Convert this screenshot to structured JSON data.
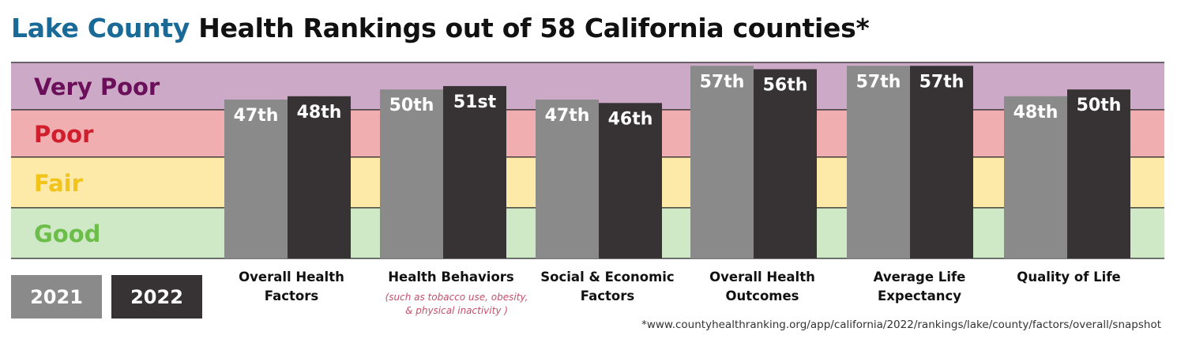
{
  "title": {
    "county": "Lake County",
    "rest": " Health Rankings out of 58 California counties*"
  },
  "chart_data": {
    "type": "bar",
    "ylim": [
      0,
      58
    ],
    "bands": [
      {
        "label": "Very Poor",
        "color": "#cca9c7",
        "text_color": "#6b0f5a",
        "from": 44,
        "to": 58
      },
      {
        "label": "Poor",
        "color": "#f0aeb1",
        "text_color": "#d01f2c",
        "from": 30,
        "to": 44
      },
      {
        "label": "Fair",
        "color": "#fde9a8",
        "text_color": "#f2c318",
        "from": 15,
        "to": 30
      },
      {
        "label": "Good",
        "color": "#cfe8c6",
        "text_color": "#6cbd4a",
        "from": 0,
        "to": 15
      }
    ],
    "categories": [
      "Overall Health Factors",
      "Health Behaviors",
      "Social & Economic Factors",
      "Overall Health Outcomes",
      "Average Life Expectancy",
      "Quality of Life"
    ],
    "series": [
      {
        "name": "2021",
        "color": "#8a8a8a",
        "values": [
          47,
          50,
          47,
          57,
          57,
          48
        ],
        "labels": [
          "47th",
          "50th",
          "47th",
          "57th",
          "57th",
          "48th"
        ]
      },
      {
        "name": "2022",
        "color": "#373233",
        "values": [
          48,
          51,
          46,
          56,
          57,
          50
        ],
        "labels": [
          "48th",
          "51st",
          "46th",
          "56th",
          "57th",
          "50th"
        ]
      }
    ]
  },
  "category_labels": [
    {
      "line1": "Overall Health",
      "line2": "Factors"
    },
    {
      "line1": "Health Behaviors",
      "line2": ""
    },
    {
      "line1": "Social & Economic",
      "line2": "Factors"
    },
    {
      "line1": "Overall Health",
      "line2": "Outcomes"
    },
    {
      "line1": "Average Life",
      "line2": "Expectancy"
    },
    {
      "line1": "Quality of Life",
      "line2": ""
    }
  ],
  "note": {
    "line1": "(such as tobacco use, obesity,",
    "line2": "& physical inactivity )"
  },
  "legend": {
    "label_2021": "2021",
    "label_2022": "2022"
  },
  "source": "*www.countyhealthranking.org/app/california/2022/rankings/lake/county/factors/overall/snapshot"
}
